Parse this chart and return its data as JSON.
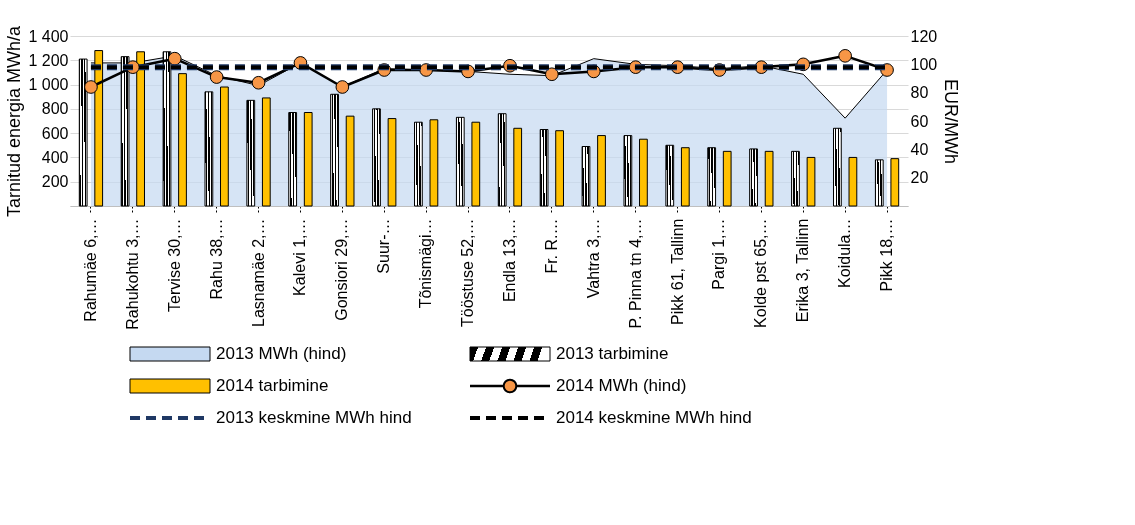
{
  "chart_data": {
    "type": "bar",
    "ylabel": "Tarnitud energia MWh/a",
    "y2label": "EUR/MWh",
    "categories": [
      "Rahumäe 6,…",
      "Rahukohtu 3,…",
      "Tervise 30,…",
      "Rahu 38,…",
      "Lasnamäe 2,…",
      "Kalevi 1,…",
      "Gonsiori 29,…",
      "Suur-…",
      "Tõnismägi…",
      "Tööstuse 52,…",
      "Endla 13,…",
      "Fr. R.…",
      "Vahtra 3,…",
      "P. Pinna tn 4,…",
      "Pikk 61, Tallinn",
      "Pargi 1,…",
      "Kolde pst 65,…",
      "Erika 3, Tallinn",
      "Koidula…",
      "Pikk 18,…"
    ],
    "series": [
      {
        "name": "2013 MWh (hind)",
        "type": "area",
        "axis": "y2",
        "color": "#c5d9f1",
        "values": [
          101,
          101,
          106,
          92,
          85,
          101,
          84,
          97,
          96,
          95,
          93,
          92,
          104,
          100,
          99,
          97,
          99,
          93,
          62,
          96
        ]
      },
      {
        "name": "2013 tarbimine",
        "type": "bar",
        "color": "#000000",
        "values": [
          1210,
          1230,
          1270,
          940,
          870,
          770,
          920,
          800,
          690,
          730,
          760,
          630,
          490,
          580,
          500,
          480,
          470,
          450,
          640,
          380
        ]
      },
      {
        "name": "2014 tarbimine",
        "type": "bar",
        "color": "#ffc000",
        "values": [
          1280,
          1270,
          1090,
          980,
          890,
          770,
          740,
          720,
          710,
          690,
          640,
          620,
          580,
          550,
          480,
          450,
          450,
          400,
          400,
          390
        ]
      },
      {
        "name": "2014 MWh (hind)",
        "type": "line",
        "axis": "y2",
        "color": "#000000",
        "marker": "circle",
        "values": [
          84,
          98,
          104,
          91,
          87,
          101,
          84,
          96,
          96,
          95,
          99,
          93,
          95,
          98,
          98,
          96,
          98,
          100,
          106,
          96
        ]
      },
      {
        "name": "2013 keskmine MWh hind",
        "type": "line",
        "axis": "y2",
        "color": "#1f3864",
        "line_style": "dashed",
        "values": [
          98,
          98,
          98,
          98,
          98,
          98,
          98,
          98,
          98,
          98,
          98,
          98,
          98,
          98,
          98,
          98,
          98,
          98,
          98,
          98
        ]
      },
      {
        "name": "2014 keskmine MWh hind",
        "type": "line",
        "axis": "y2",
        "color": "#000000",
        "line_style": "dashed",
        "values": [
          98,
          98,
          98,
          98,
          98,
          98,
          98,
          98,
          98,
          98,
          98,
          98,
          98,
          98,
          98,
          98,
          98,
          98,
          98,
          98
        ]
      }
    ],
    "ylim": [
      0,
      1400
    ],
    "yticks": [
      {
        "value": 0,
        "label": null
      },
      200,
      400,
      600,
      800,
      1000,
      1200,
      1400
    ],
    "y2lim": [
      0,
      120
    ],
    "y2ticks": [
      20,
      40,
      60,
      80,
      100,
      120
    ],
    "grid": "y",
    "legend": "bottom"
  }
}
